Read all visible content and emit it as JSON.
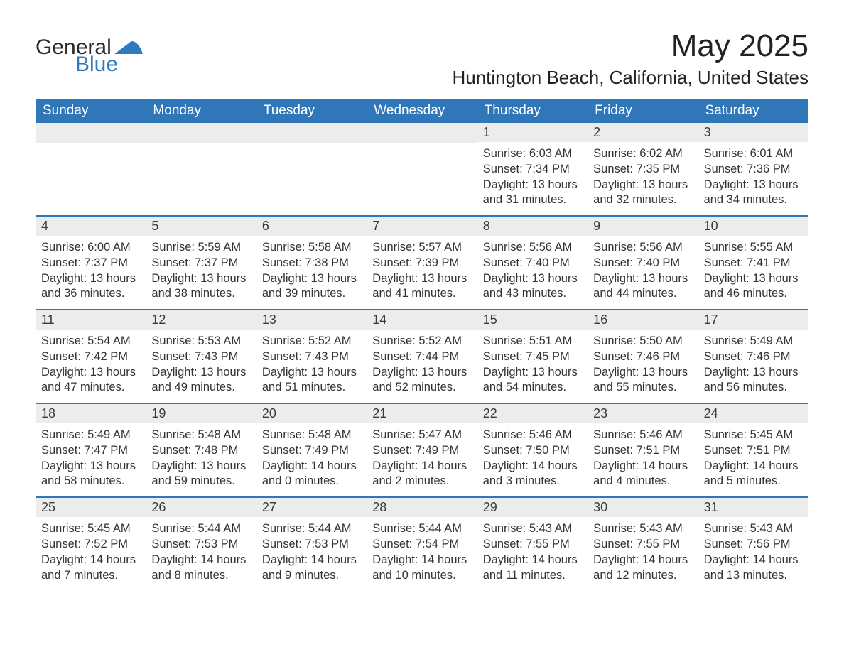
{
  "brand": {
    "text_general": "General",
    "text_blue": "Blue",
    "logo_fill": "#2e7ac0",
    "text_color_dark": "#2a2a2a"
  },
  "header": {
    "month_title": "May 2025",
    "location": "Huntington Beach, California, United States"
  },
  "colors": {
    "header_bg": "#3077b9",
    "header_text": "#ffffff",
    "daynum_bg": "#ececec",
    "daynum_text": "#3a3a3a",
    "body_text": "#333333",
    "page_bg": "#ffffff",
    "row_border": "#3077b9"
  },
  "fonts": {
    "month_title_size": 44,
    "location_size": 26,
    "dow_size": 19,
    "daynum_size": 18,
    "body_size": 16.5
  },
  "calendar": {
    "days_of_week": [
      "Sunday",
      "Monday",
      "Tuesday",
      "Wednesday",
      "Thursday",
      "Friday",
      "Saturday"
    ],
    "weeks": [
      [
        null,
        null,
        null,
        null,
        {
          "n": "1",
          "sunrise": "6:03 AM",
          "sunset": "7:34 PM",
          "daylight": "13 hours and 31 minutes."
        },
        {
          "n": "2",
          "sunrise": "6:02 AM",
          "sunset": "7:35 PM",
          "daylight": "13 hours and 32 minutes."
        },
        {
          "n": "3",
          "sunrise": "6:01 AM",
          "sunset": "7:36 PM",
          "daylight": "13 hours and 34 minutes."
        }
      ],
      [
        {
          "n": "4",
          "sunrise": "6:00 AM",
          "sunset": "7:37 PM",
          "daylight": "13 hours and 36 minutes."
        },
        {
          "n": "5",
          "sunrise": "5:59 AM",
          "sunset": "7:37 PM",
          "daylight": "13 hours and 38 minutes."
        },
        {
          "n": "6",
          "sunrise": "5:58 AM",
          "sunset": "7:38 PM",
          "daylight": "13 hours and 39 minutes."
        },
        {
          "n": "7",
          "sunrise": "5:57 AM",
          "sunset": "7:39 PM",
          "daylight": "13 hours and 41 minutes."
        },
        {
          "n": "8",
          "sunrise": "5:56 AM",
          "sunset": "7:40 PM",
          "daylight": "13 hours and 43 minutes."
        },
        {
          "n": "9",
          "sunrise": "5:56 AM",
          "sunset": "7:40 PM",
          "daylight": "13 hours and 44 minutes."
        },
        {
          "n": "10",
          "sunrise": "5:55 AM",
          "sunset": "7:41 PM",
          "daylight": "13 hours and 46 minutes."
        }
      ],
      [
        {
          "n": "11",
          "sunrise": "5:54 AM",
          "sunset": "7:42 PM",
          "daylight": "13 hours and 47 minutes."
        },
        {
          "n": "12",
          "sunrise": "5:53 AM",
          "sunset": "7:43 PM",
          "daylight": "13 hours and 49 minutes."
        },
        {
          "n": "13",
          "sunrise": "5:52 AM",
          "sunset": "7:43 PM",
          "daylight": "13 hours and 51 minutes."
        },
        {
          "n": "14",
          "sunrise": "5:52 AM",
          "sunset": "7:44 PM",
          "daylight": "13 hours and 52 minutes."
        },
        {
          "n": "15",
          "sunrise": "5:51 AM",
          "sunset": "7:45 PM",
          "daylight": "13 hours and 54 minutes."
        },
        {
          "n": "16",
          "sunrise": "5:50 AM",
          "sunset": "7:46 PM",
          "daylight": "13 hours and 55 minutes."
        },
        {
          "n": "17",
          "sunrise": "5:49 AM",
          "sunset": "7:46 PM",
          "daylight": "13 hours and 56 minutes."
        }
      ],
      [
        {
          "n": "18",
          "sunrise": "5:49 AM",
          "sunset": "7:47 PM",
          "daylight": "13 hours and 58 minutes."
        },
        {
          "n": "19",
          "sunrise": "5:48 AM",
          "sunset": "7:48 PM",
          "daylight": "13 hours and 59 minutes."
        },
        {
          "n": "20",
          "sunrise": "5:48 AM",
          "sunset": "7:49 PM",
          "daylight": "14 hours and 0 minutes."
        },
        {
          "n": "21",
          "sunrise": "5:47 AM",
          "sunset": "7:49 PM",
          "daylight": "14 hours and 2 minutes."
        },
        {
          "n": "22",
          "sunrise": "5:46 AM",
          "sunset": "7:50 PM",
          "daylight": "14 hours and 3 minutes."
        },
        {
          "n": "23",
          "sunrise": "5:46 AM",
          "sunset": "7:51 PM",
          "daylight": "14 hours and 4 minutes."
        },
        {
          "n": "24",
          "sunrise": "5:45 AM",
          "sunset": "7:51 PM",
          "daylight": "14 hours and 5 minutes."
        }
      ],
      [
        {
          "n": "25",
          "sunrise": "5:45 AM",
          "sunset": "7:52 PM",
          "daylight": "14 hours and 7 minutes."
        },
        {
          "n": "26",
          "sunrise": "5:44 AM",
          "sunset": "7:53 PM",
          "daylight": "14 hours and 8 minutes."
        },
        {
          "n": "27",
          "sunrise": "5:44 AM",
          "sunset": "7:53 PM",
          "daylight": "14 hours and 9 minutes."
        },
        {
          "n": "28",
          "sunrise": "5:44 AM",
          "sunset": "7:54 PM",
          "daylight": "14 hours and 10 minutes."
        },
        {
          "n": "29",
          "sunrise": "5:43 AM",
          "sunset": "7:55 PM",
          "daylight": "14 hours and 11 minutes."
        },
        {
          "n": "30",
          "sunrise": "5:43 AM",
          "sunset": "7:55 PM",
          "daylight": "14 hours and 12 minutes."
        },
        {
          "n": "31",
          "sunrise": "5:43 AM",
          "sunset": "7:56 PM",
          "daylight": "14 hours and 13 minutes."
        }
      ]
    ]
  },
  "labels": {
    "sunrise_prefix": "Sunrise: ",
    "sunset_prefix": "Sunset: ",
    "daylight_prefix": "Daylight: "
  }
}
